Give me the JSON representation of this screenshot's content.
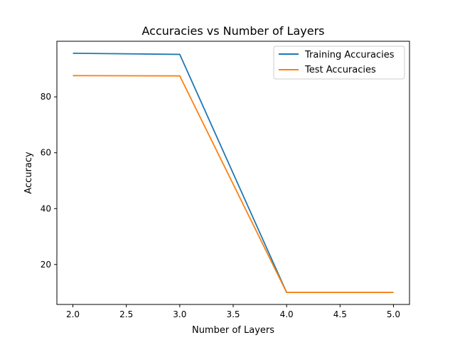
{
  "chart_data": {
    "type": "line",
    "title": "Accuracies vs Number of Layers",
    "xlabel": "Number of Layers",
    "ylabel": "Accuracy",
    "x": [
      2,
      3,
      4,
      5
    ],
    "series": [
      {
        "name": "Training Accuracies",
        "color": "#1f77b4",
        "values": [
          95.6,
          95.2,
          10.0,
          10.0
        ]
      },
      {
        "name": "Test Accuracies",
        "color": "#ff7f0e",
        "values": [
          87.6,
          87.5,
          10.0,
          10.0
        ]
      }
    ],
    "xlim": [
      1.85,
      5.15
    ],
    "ylim": [
      5.7,
      99.9
    ],
    "xticks": [
      "2.0",
      "2.5",
      "3.0",
      "3.5",
      "4.0",
      "4.5",
      "5.0"
    ],
    "yticks": [
      "20",
      "40",
      "60",
      "80"
    ],
    "grid": false,
    "legend_position": "top-right"
  }
}
